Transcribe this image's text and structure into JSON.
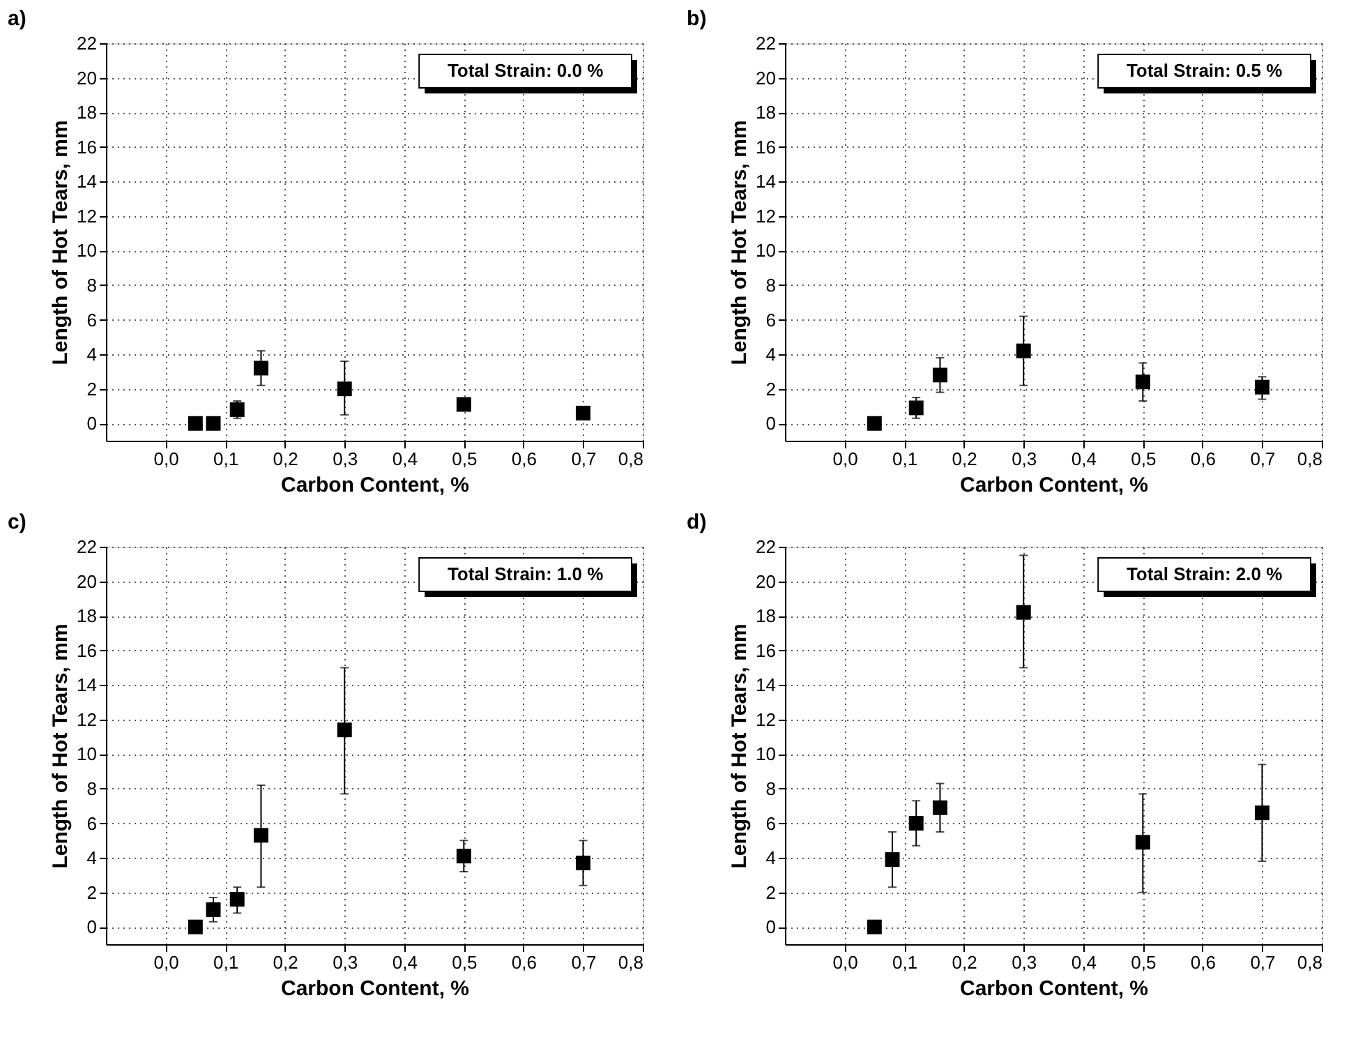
{
  "chart_data": [
    {
      "type": "scatter",
      "title": "a)",
      "xlabel": "Carbon Content, %",
      "ylabel": "Length of Hot Tears, mm",
      "annotations": [
        "Total Strain: 0.0 %"
      ],
      "xlim": [
        -0.1,
        0.8
      ],
      "xticks": [
        {
          "value": 0,
          "label": "0,0"
        },
        {
          "value": 0.1,
          "label": "0,1"
        },
        {
          "value": 0.2,
          "label": "0,2"
        },
        {
          "value": 0.3,
          "label": "0,3"
        },
        {
          "value": 0.4,
          "label": "0,4"
        },
        {
          "value": 0.5,
          "label": "0,5"
        },
        {
          "value": 0.6,
          "label": "0,6"
        },
        {
          "value": 0.7,
          "label": "0,7"
        },
        {
          "value": 0.8,
          "label": "0,8"
        }
      ],
      "ylim": [
        -1,
        22
      ],
      "yticks": [
        0,
        2,
        4,
        6,
        8,
        10,
        12,
        14,
        16,
        18,
        20,
        22
      ],
      "grid": true,
      "marker": "square",
      "series": [
        {
          "color": "#000000",
          "x": [
            0.05,
            0.08,
            0.12,
            0.16,
            0.3,
            0.5,
            0.7
          ],
          "values": [
            0,
            0,
            0.8,
            3.2,
            2.0,
            1.1,
            0.6
          ],
          "errors": [
            null,
            null,
            [
              0.3,
              1.3
            ],
            [
              2.2,
              4.2
            ],
            [
              0.5,
              3.6
            ],
            null,
            null
          ]
        }
      ]
    },
    {
      "type": "scatter",
      "title": "b)",
      "xlabel": "Carbon Content, %",
      "ylabel": "Length of Hot Tears, mm",
      "annotations": [
        "Total Strain: 0.5 %"
      ],
      "xlim": [
        -0.1,
        0.8
      ],
      "xticks": [
        {
          "value": 0,
          "label": "0,0"
        },
        {
          "value": 0.1,
          "label": "0,1"
        },
        {
          "value": 0.2,
          "label": "0,2"
        },
        {
          "value": 0.3,
          "label": "0,3"
        },
        {
          "value": 0.4,
          "label": "0,4"
        },
        {
          "value": 0.5,
          "label": "0,5"
        },
        {
          "value": 0.6,
          "label": "0,6"
        },
        {
          "value": 0.7,
          "label": "0,7"
        },
        {
          "value": 0.8,
          "label": "0,8"
        }
      ],
      "ylim": [
        -1,
        22
      ],
      "yticks": [
        0,
        2,
        4,
        6,
        8,
        10,
        12,
        14,
        16,
        18,
        20,
        22
      ],
      "grid": true,
      "marker": "square",
      "series": [
        {
          "color": "#000000",
          "x": [
            0.05,
            0.12,
            0.16,
            0.3,
            0.5,
            0.7
          ],
          "values": [
            0,
            0.9,
            2.8,
            4.2,
            2.4,
            2.1
          ],
          "errors": [
            null,
            [
              0.3,
              1.5
            ],
            [
              1.8,
              3.8
            ],
            [
              2.2,
              6.2
            ],
            [
              1.3,
              3.5
            ],
            [
              1.4,
              2.7
            ]
          ]
        }
      ]
    },
    {
      "type": "scatter",
      "title": "c)",
      "xlabel": "Carbon Content, %",
      "ylabel": "Length of Hot Tears, mm",
      "annotations": [
        "Total Strain: 1.0 %"
      ],
      "xlim": [
        -0.1,
        0.8
      ],
      "xticks": [
        {
          "value": 0,
          "label": "0,0"
        },
        {
          "value": 0.1,
          "label": "0,1"
        },
        {
          "value": 0.2,
          "label": "0,2"
        },
        {
          "value": 0.3,
          "label": "0,3"
        },
        {
          "value": 0.4,
          "label": "0,4"
        },
        {
          "value": 0.5,
          "label": "0,5"
        },
        {
          "value": 0.6,
          "label": "0,6"
        },
        {
          "value": 0.7,
          "label": "0,7"
        },
        {
          "value": 0.8,
          "label": "0,8"
        }
      ],
      "ylim": [
        -1,
        22
      ],
      "yticks": [
        0,
        2,
        4,
        6,
        8,
        10,
        12,
        14,
        16,
        18,
        20,
        22
      ],
      "grid": true,
      "marker": "square",
      "series": [
        {
          "color": "#000000",
          "x": [
            0.05,
            0.08,
            0.12,
            0.16,
            0.3,
            0.5,
            0.7
          ],
          "values": [
            0,
            1.0,
            1.6,
            5.3,
            11.4,
            4.1,
            3.7
          ],
          "errors": [
            null,
            [
              0.3,
              1.7
            ],
            [
              0.8,
              2.3
            ],
            [
              2.3,
              8.2
            ],
            [
              7.7,
              15.0
            ],
            [
              3.2,
              5.0
            ],
            [
              2.4,
              5.0
            ]
          ]
        }
      ]
    },
    {
      "type": "scatter",
      "title": "d)",
      "xlabel": "Carbon Content, %",
      "ylabel": "Length of Hot Tears, mm",
      "annotations": [
        "Total Strain: 2.0 %"
      ],
      "xlim": [
        -0.1,
        0.8
      ],
      "xticks": [
        {
          "value": 0,
          "label": "0,0"
        },
        {
          "value": 0.1,
          "label": "0,1"
        },
        {
          "value": 0.2,
          "label": "0,2"
        },
        {
          "value": 0.3,
          "label": "0,3"
        },
        {
          "value": 0.4,
          "label": "0,4"
        },
        {
          "value": 0.5,
          "label": "0,5"
        },
        {
          "value": 0.6,
          "label": "0,6"
        },
        {
          "value": 0.7,
          "label": "0,7"
        },
        {
          "value": 0.8,
          "label": "0,8"
        }
      ],
      "ylim": [
        -1,
        22
      ],
      "yticks": [
        0,
        2,
        4,
        6,
        8,
        10,
        12,
        14,
        16,
        18,
        20,
        22
      ],
      "grid": true,
      "marker": "square",
      "series": [
        {
          "color": "#000000",
          "x": [
            0.05,
            0.08,
            0.12,
            0.16,
            0.3,
            0.5,
            0.7
          ],
          "values": [
            0,
            3.9,
            6.0,
            6.9,
            18.2,
            4.9,
            6.6
          ],
          "errors": [
            null,
            [
              2.3,
              5.5
            ],
            [
              4.7,
              7.3
            ],
            [
              5.5,
              8.3
            ],
            [
              15.0,
              21.5
            ],
            [
              2.0,
              7.7
            ],
            [
              3.8,
              9.4
            ]
          ]
        }
      ]
    }
  ]
}
